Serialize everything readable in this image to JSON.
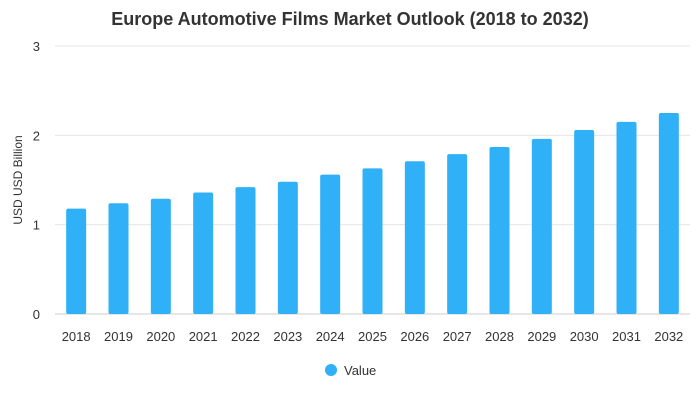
{
  "chart_data": {
    "type": "bar",
    "title": "Europe Automotive Films Market Outlook (2018 to 2032)",
    "xlabel": "",
    "ylabel": "USD USD Billion",
    "categories": [
      "2018",
      "2019",
      "2020",
      "2021",
      "2022",
      "2023",
      "2024",
      "2025",
      "2026",
      "2027",
      "2028",
      "2029",
      "2030",
      "2031",
      "2032"
    ],
    "series": [
      {
        "name": "Value",
        "color": "#2fb0f7",
        "values": [
          1.18,
          1.24,
          1.29,
          1.36,
          1.42,
          1.48,
          1.56,
          1.63,
          1.71,
          1.79,
          1.87,
          1.96,
          2.06,
          2.15,
          2.25
        ]
      }
    ],
    "ylim": [
      0,
      3
    ],
    "yticks": [
      "0",
      "1",
      "2",
      "3"
    ],
    "grid": true,
    "legend_position": "bottom-center"
  }
}
